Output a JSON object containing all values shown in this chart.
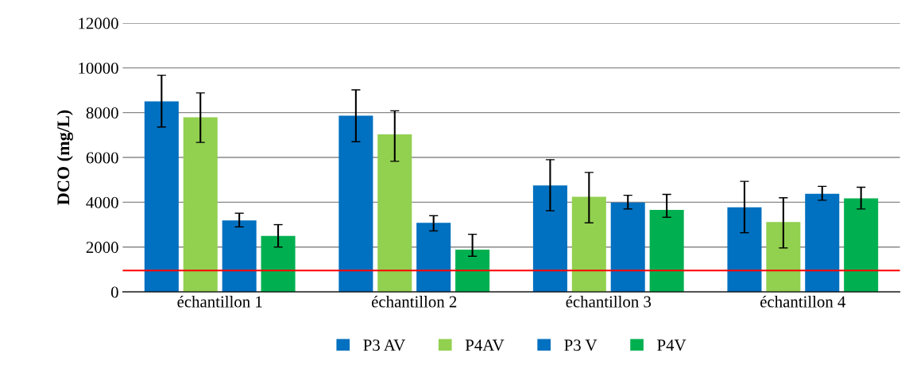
{
  "chart_data": {
    "type": "bar",
    "ylabel": "DCO (mg/L)",
    "categories": [
      "échantillon 1",
      "échantillon 2",
      "échantillon 3",
      "échantillon 4"
    ],
    "series": [
      {
        "name": "P3 AV",
        "color": "#0070c0",
        "values": [
          8500,
          7860,
          4750,
          3770
        ],
        "errors": [
          [
            7360,
            9670
          ],
          [
            6700,
            9020
          ],
          [
            3620,
            5900
          ],
          [
            2640,
            4930
          ]
        ]
      },
      {
        "name": "P4AV",
        "color": "#92d050",
        "values": [
          7790,
          7030,
          4240,
          3120
        ],
        "errors": [
          [
            6670,
            8880
          ],
          [
            5830,
            8080
          ],
          [
            3080,
            5330
          ],
          [
            1960,
            4200
          ]
        ]
      },
      {
        "name": "P3 V",
        "color": "#0070c0",
        "values": [
          3190,
          3080,
          3990,
          4380
        ],
        "errors": [
          [
            2900,
            3510
          ],
          [
            2720,
            3400
          ],
          [
            3700,
            4310
          ],
          [
            4090,
            4710
          ]
        ]
      },
      {
        "name": "P4V",
        "color": "#00b050",
        "values": [
          2500,
          1880,
          3660,
          4170
        ],
        "errors": [
          [
            2000,
            3000
          ],
          [
            1590,
            2570
          ],
          [
            3330,
            4350
          ],
          [
            3700,
            4670
          ]
        ]
      }
    ],
    "ylim": [
      0,
      12000
    ],
    "yticks": [
      0,
      2000,
      4000,
      6000,
      8000,
      10000,
      12000
    ],
    "grid": "y",
    "legend": "bottom",
    "ref_lines": [
      {
        "axis": "y",
        "value": 950,
        "color": "#ff0000"
      }
    ]
  }
}
